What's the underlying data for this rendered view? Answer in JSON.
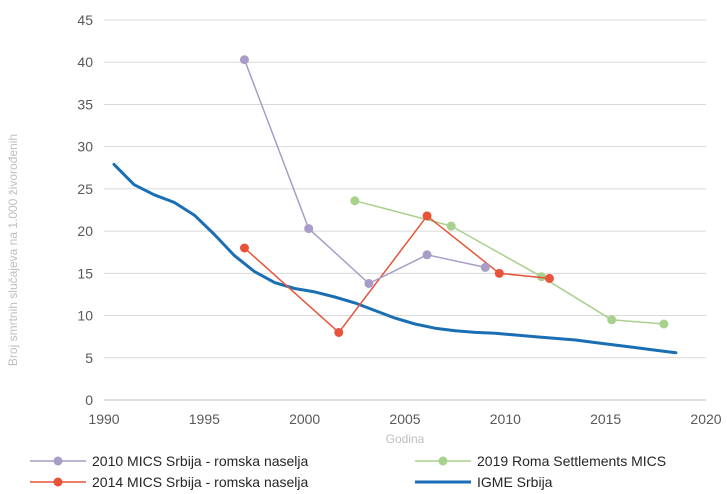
{
  "chart_data": {
    "type": "line",
    "xlabel": "Godina",
    "ylabel": "Broj smrtnih slučajeva na 1.000 živorođenih",
    "xlim": [
      1990,
      2020
    ],
    "ylim": [
      0,
      45
    ],
    "xticks": [
      1990,
      1995,
      2000,
      2005,
      2010,
      2015,
      2020
    ],
    "yticks": [
      0,
      5,
      10,
      15,
      20,
      25,
      30,
      35,
      40,
      45
    ],
    "grid": true,
    "legend_position": "bottom",
    "series": [
      {
        "name": "2010 MICS Srbija - romska naselja",
        "color": "#a89cc8",
        "marker": true,
        "x": [
          1997.0,
          2000.2,
          2003.2,
          2006.1,
          2009.0
        ],
        "y": [
          40.3,
          20.3,
          13.8,
          17.2,
          15.7
        ]
      },
      {
        "name": "2019 Roma Settlements MICS",
        "color": "#a9d18e",
        "marker": true,
        "x": [
          2002.5,
          2007.3,
          2011.8,
          2015.3,
          2017.9
        ],
        "y": [
          23.6,
          20.6,
          14.6,
          9.5,
          9.0
        ]
      },
      {
        "name": "2014 MICS Srbija - romska naselja",
        "color": "#e8533a",
        "marker": true,
        "x": [
          1997.0,
          2001.7,
          2006.1,
          2009.7,
          2012.2
        ],
        "y": [
          18.0,
          8.0,
          21.8,
          15.0,
          14.4
        ]
      },
      {
        "name": "IGME Srbija",
        "color": "#1a6eb3",
        "marker": false,
        "x": [
          1990.5,
          1991.5,
          1992.5,
          1993.5,
          1994.5,
          1995.5,
          1996.5,
          1997.5,
          1998.5,
          1999.5,
          2000.5,
          2001.5,
          2002.5,
          2003.5,
          2004.5,
          2005.5,
          2006.5,
          2007.5,
          2008.5,
          2009.5,
          2010.5,
          2011.5,
          2012.5,
          2013.5,
          2014.5,
          2015.5,
          2016.5,
          2017.5,
          2018.5
        ],
        "y": [
          27.9,
          25.5,
          24.3,
          23.4,
          21.9,
          19.6,
          17.1,
          15.2,
          13.9,
          13.2,
          12.8,
          12.2,
          11.5,
          10.6,
          9.7,
          9.0,
          8.5,
          8.2,
          8.0,
          7.9,
          7.7,
          7.5,
          7.3,
          7.1,
          6.8,
          6.5,
          6.2,
          5.9,
          5.6
        ]
      }
    ]
  }
}
